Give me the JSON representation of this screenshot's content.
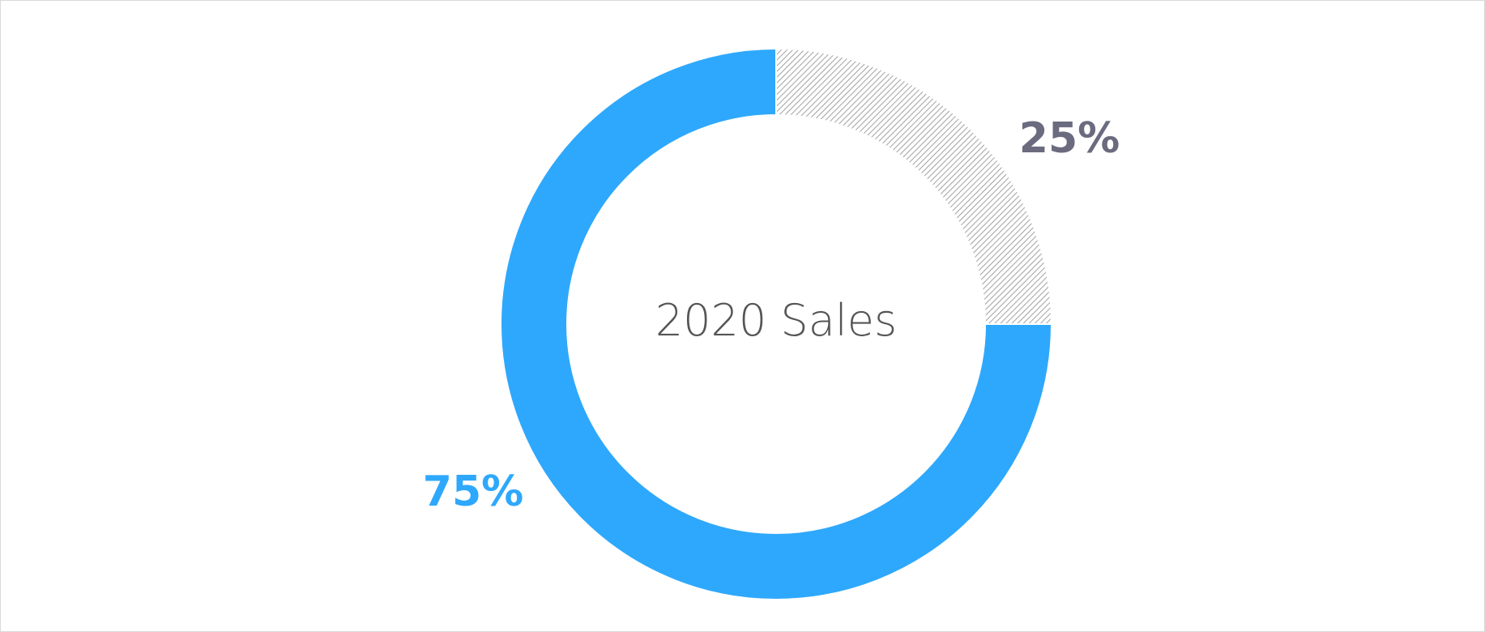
{
  "chart_data": {
    "type": "pie",
    "variant": "donut",
    "title": "2020 Sales",
    "slices": [
      {
        "label": "75%",
        "value": 75,
        "color": "#2EA8FC",
        "fill": "solid"
      },
      {
        "label": "25%",
        "value": 25,
        "color": "#6B6B7F",
        "fill": "hatched"
      }
    ]
  }
}
